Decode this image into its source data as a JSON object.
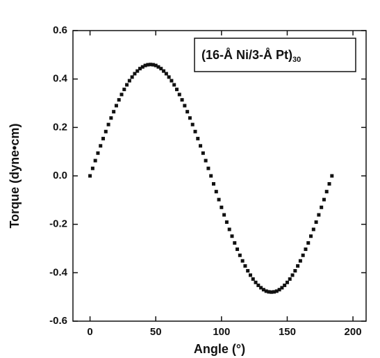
{
  "chart_data": {
    "type": "scatter",
    "x_label": "Angle (°)",
    "y_label": "Torque (dyne•cm)",
    "annotation": {
      "text": "(16-Å Ni/3-Å Pt)",
      "subscript": "30"
    },
    "color": "#111111",
    "xlim": [
      -13,
      210
    ],
    "xticks": [
      0,
      50,
      100,
      150,
      200
    ],
    "ylim": [
      -0.6,
      0.6
    ],
    "yticks": [
      -0.6,
      -0.4,
      -0.2,
      {
        "value": 0,
        "label": "0.0"
      },
      0.2,
      0.4,
      0.6
    ],
    "x": [
      0,
      2,
      4,
      6,
      8,
      10,
      12,
      14,
      16,
      18,
      20,
      22,
      24,
      26,
      28,
      30,
      32,
      34,
      36,
      38,
      40,
      42,
      44,
      46,
      48,
      50,
      52,
      54,
      56,
      58,
      60,
      62,
      64,
      66,
      68,
      70,
      72,
      74,
      76,
      78,
      80,
      82,
      84,
      86,
      88,
      90,
      92,
      94,
      96,
      98,
      100,
      102,
      104,
      106,
      108,
      110,
      112,
      114,
      116,
      118,
      120,
      122,
      124,
      126,
      128,
      130,
      132,
      134,
      136,
      138,
      140,
      142,
      144,
      146,
      148,
      150,
      152,
      154,
      156,
      158,
      160,
      162,
      164,
      166,
      168,
      170,
      172,
      174,
      176,
      178,
      180,
      182,
      184
    ],
    "values": [
      0,
      0.031,
      0.063,
      0.094,
      0.124,
      0.154,
      0.183,
      0.212,
      0.239,
      0.265,
      0.29,
      0.314,
      0.336,
      0.357,
      0.376,
      0.393,
      0.408,
      0.422,
      0.433,
      0.443,
      0.45,
      0.456,
      0.459,
      0.46,
      0.459,
      0.456,
      0.45,
      0.443,
      0.433,
      0.422,
      0.408,
      0.393,
      0.376,
      0.357,
      0.336,
      0.314,
      0.29,
      0.265,
      0.239,
      0.212,
      0.183,
      0.154,
      0.124,
      0.094,
      0.063,
      0.031,
      0,
      -0.033,
      -0.065,
      -0.098,
      -0.13,
      -0.161,
      -0.191,
      -0.221,
      -0.249,
      -0.277,
      -0.303,
      -0.328,
      -0.351,
      -0.372,
      -0.392,
      -0.41,
      -0.426,
      -0.44,
      -0.452,
      -0.462,
      -0.47,
      -0.476,
      -0.479,
      -0.48,
      -0.479,
      -0.476,
      -0.47,
      -0.462,
      -0.452,
      -0.44,
      -0.426,
      -0.41,
      -0.392,
      -0.372,
      -0.351,
      -0.328,
      -0.303,
      -0.277,
      -0.249,
      -0.221,
      -0.191,
      -0.161,
      -0.13,
      -0.098,
      -0.065,
      -0.033,
      0
    ]
  }
}
